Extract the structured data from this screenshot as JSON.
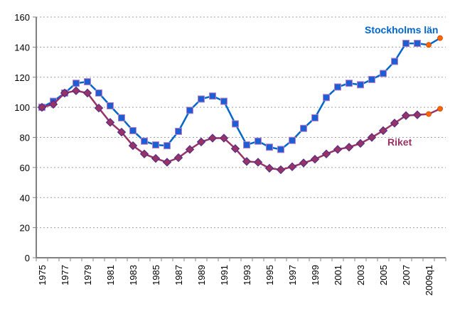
{
  "chart_data": {
    "type": "line",
    "title": "",
    "xlabel": "",
    "ylabel": "",
    "ylim": [
      0,
      160
    ],
    "yticks": [
      0,
      20,
      40,
      60,
      80,
      100,
      120,
      140,
      160
    ],
    "grid": true,
    "categories": [
      "1975",
      "1976",
      "1977",
      "1978",
      "1979",
      "1980",
      "1981",
      "1982",
      "1983",
      "1984",
      "1985",
      "1986",
      "1987",
      "1988",
      "1989",
      "1990",
      "1991",
      "1992",
      "1993",
      "1994",
      "1995",
      "1996",
      "1997",
      "1998",
      "1999",
      "2000",
      "2001",
      "2002",
      "2003",
      "2004",
      "2005",
      "2006",
      "2007",
      "2008",
      "2009q1",
      ""
    ],
    "xtick_labels": [
      "1975",
      "",
      "1977",
      "",
      "1979",
      "",
      "1981",
      "",
      "1983",
      "",
      "1985",
      "",
      "1987",
      "",
      "1989",
      "",
      "1991",
      "",
      "1993",
      "",
      "1995",
      "",
      "1997",
      "",
      "1999",
      "",
      "2001",
      "",
      "2003",
      "",
      "2005",
      "",
      "2007",
      "",
      "2009q1",
      ""
    ],
    "series": [
      {
        "name": "Stockholms län",
        "color": "#0066cc",
        "marker_color": "#1a5fd6",
        "marker": "square",
        "forecast_marker_color": "#ff6600",
        "forecast_from_index": 34,
        "values": [
          100,
          104,
          109.5,
          116,
          117,
          109.5,
          101,
          93,
          84.5,
          77.5,
          75,
          74.5,
          84,
          98,
          105.5,
          107.5,
          104,
          89,
          75,
          77.5,
          73.5,
          72,
          78,
          86,
          93,
          106.5,
          113.5,
          116,
          115,
          118.5,
          122.5,
          130.5,
          142.5,
          142.5,
          141.5,
          146
        ]
      },
      {
        "name": "Riket",
        "color": "#993366",
        "marker_color": "#993366",
        "marker": "diamond",
        "forecast_marker_color": "#ff6600",
        "forecast_from_index": 34,
        "values": [
          100,
          102,
          109.5,
          111,
          109.5,
          99.5,
          90,
          83.5,
          74.5,
          69,
          66,
          63.5,
          66.5,
          72,
          77,
          79.5,
          79.5,
          72.5,
          64,
          63.5,
          59.5,
          58.5,
          60.5,
          63,
          65.5,
          69,
          72,
          73.5,
          76,
          80,
          84.5,
          89.5,
          94.5,
          95,
          95.5,
          99
        ]
      }
    ],
    "annotations": [
      {
        "text": "Stockholms län",
        "series": "Stockholms län"
      },
      {
        "text": "Riket",
        "series": "Riket"
      }
    ]
  }
}
